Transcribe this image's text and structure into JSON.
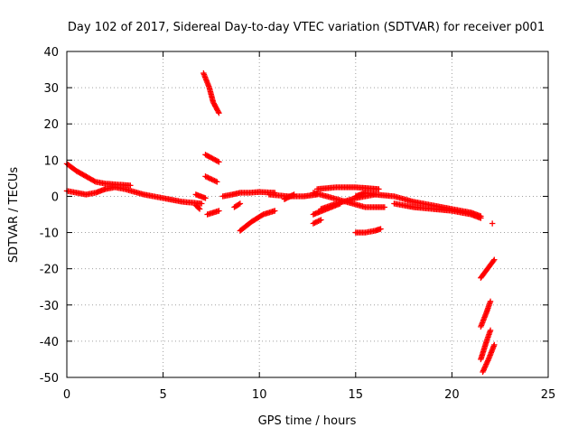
{
  "colors": {
    "series": "#ff0000",
    "grid": "#a0a0a0",
    "axis": "#000000",
    "background": "#ffffff"
  },
  "chart_data": {
    "type": "scatter",
    "title": "Day 102 of 2017, Sidereal Day-to-day VTEC variation (SDTVAR) for receiver p001",
    "xlabel": "GPS time / hours",
    "ylabel": "SDTVAR / TECUs",
    "xlim": [
      0,
      25
    ],
    "ylim": [
      -50,
      40
    ],
    "xticks": [
      0,
      5,
      10,
      15,
      20,
      25
    ],
    "yticks": [
      -50,
      -40,
      -30,
      -20,
      -10,
      0,
      10,
      20,
      30,
      40
    ],
    "grid": true,
    "legend": "none",
    "marker": "+",
    "series": [
      {
        "segments": [
          [
            [
              0.0,
              9.0
            ],
            [
              0.5,
              7.0
            ],
            [
              1.0,
              5.5
            ],
            [
              1.5,
              4.0
            ],
            [
              2.0,
              3.5
            ],
            [
              3.3,
              3.0
            ]
          ],
          [
            [
              0.0,
              1.5
            ],
            [
              1.0,
              0.5
            ],
            [
              1.5,
              1.0
            ],
            [
              2.0,
              2.0
            ],
            [
              2.5,
              2.5
            ],
            [
              3.0,
              2.0
            ],
            [
              4.0,
              0.5
            ],
            [
              5.0,
              -0.5
            ],
            [
              6.0,
              -1.5
            ],
            [
              7.0,
              -2.0
            ]
          ],
          [
            [
              6.7,
              0.5
            ],
            [
              7.2,
              -0.5
            ]
          ],
          [
            [
              6.7,
              -2.5
            ],
            [
              6.9,
              -3.5
            ]
          ],
          [
            [
              7.1,
              34.0
            ],
            [
              7.4,
              30.0
            ],
            [
              7.6,
              26.0
            ],
            [
              7.9,
              23.0
            ]
          ],
          [
            [
              7.2,
              11.5
            ],
            [
              7.9,
              9.5
            ]
          ],
          [
            [
              7.2,
              5.5
            ],
            [
              7.8,
              4.0
            ]
          ],
          [
            [
              7.3,
              -5.0
            ],
            [
              7.9,
              -4.0
            ]
          ],
          [
            [
              8.1,
              0.0
            ],
            [
              8.6,
              0.5
            ],
            [
              9.0,
              1.0
            ],
            [
              9.5,
              1.0
            ],
            [
              10.0,
              1.2
            ],
            [
              10.8,
              1.0
            ]
          ],
          [
            [
              8.7,
              -3.0
            ],
            [
              9.0,
              -2.0
            ]
          ],
          [
            [
              9.0,
              -9.5
            ],
            [
              9.6,
              -7.0
            ],
            [
              10.2,
              -5.0
            ],
            [
              10.8,
              -4.0
            ]
          ],
          [
            [
              10.5,
              0.5
            ],
            [
              11.5,
              0.0
            ],
            [
              12.3,
              0.0
            ],
            [
              13.0,
              0.5
            ]
          ],
          [
            [
              11.3,
              -0.8
            ],
            [
              11.8,
              0.5
            ]
          ],
          [
            [
              12.8,
              1.0
            ],
            [
              13.5,
              0.0
            ],
            [
              14.5,
              -1.5
            ],
            [
              15.5,
              -3.0
            ],
            [
              16.5,
              -3.0
            ]
          ],
          [
            [
              12.8,
              -5.0
            ],
            [
              13.5,
              -3.5
            ],
            [
              14.2,
              -2.0
            ]
          ],
          [
            [
              12.8,
              -7.5
            ],
            [
              13.2,
              -6.5
            ]
          ],
          [
            [
              13.0,
              2.0
            ],
            [
              14.0,
              2.5
            ],
            [
              15.0,
              2.5
            ],
            [
              16.2,
              2.0
            ]
          ],
          [
            [
              13.2,
              -3.5
            ],
            [
              14.0,
              -2.0
            ],
            [
              15.0,
              -0.5
            ],
            [
              16.0,
              0.5
            ],
            [
              17.0,
              0.0
            ],
            [
              18.0,
              -1.5
            ],
            [
              19.0,
              -2.5
            ],
            [
              20.0,
              -3.5
            ],
            [
              21.0,
              -4.5
            ],
            [
              21.5,
              -5.5
            ]
          ],
          [
            [
              15.0,
              0.0
            ],
            [
              15.5,
              1.0
            ],
            [
              16.0,
              0.5
            ]
          ],
          [
            [
              15.0,
              -10.0
            ],
            [
              15.5,
              -10.0
            ],
            [
              16.0,
              -9.5
            ],
            [
              16.3,
              -9.0
            ]
          ],
          [
            [
              17.0,
              -2.0
            ],
            [
              18.0,
              -3.0
            ],
            [
              19.0,
              -3.5
            ],
            [
              20.0,
              -4.0
            ],
            [
              21.0,
              -5.0
            ],
            [
              21.5,
              -6.0
            ]
          ],
          [
            [
              22.1,
              -7.5
            ]
          ],
          [
            [
              21.5,
              -22.5
            ],
            [
              22.2,
              -17.5
            ]
          ],
          [
            [
              21.5,
              -36.0
            ],
            [
              21.8,
              -32.0
            ],
            [
              22.0,
              -29.0
            ]
          ],
          [
            [
              21.5,
              -45.0
            ],
            [
              21.8,
              -40.0
            ],
            [
              22.0,
              -37.0
            ]
          ],
          [
            [
              21.6,
              -48.5
            ],
            [
              21.9,
              -45.0
            ],
            [
              22.2,
              -41.0
            ]
          ]
        ]
      }
    ]
  }
}
